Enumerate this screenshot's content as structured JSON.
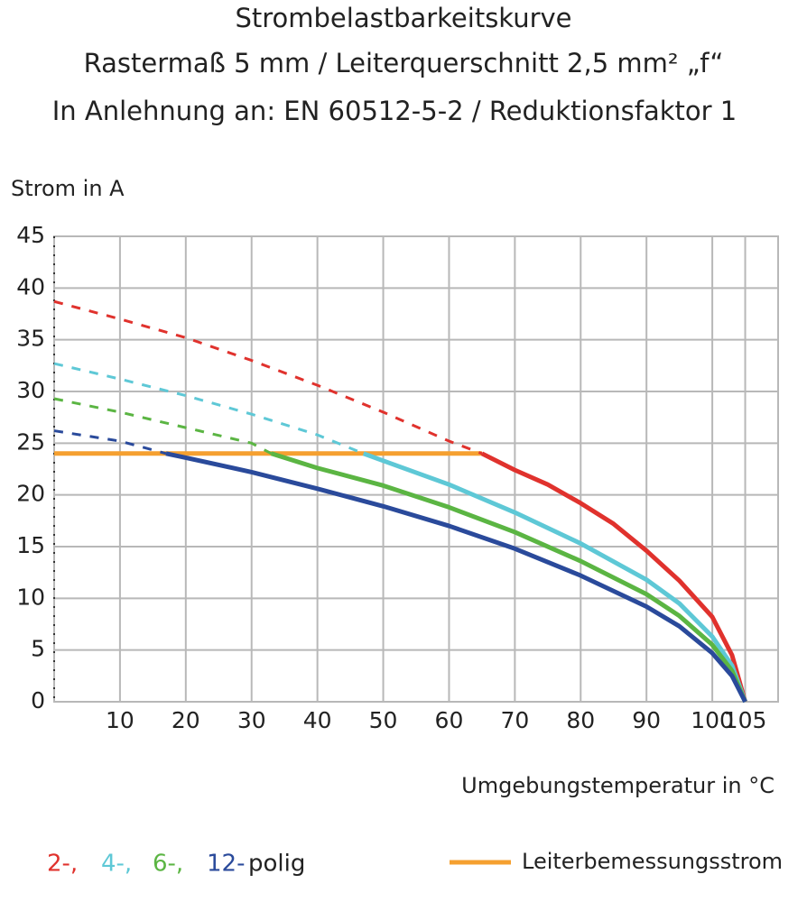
{
  "chart_data": {
    "type": "line",
    "title": "Strombelastbarkeitskurve",
    "subtitle": [
      "Rastermaß 5 mm / Leiterquerschnitt 2,5 mm² „f“",
      "In Anlehnung an: EN 60512-5-2 / Reduktionsfaktor 1"
    ],
    "y_label": "Strom in A",
    "x_label": "Umgebungstemperatur in °C",
    "legend_suffix": "polig",
    "xlim": [
      0,
      110
    ],
    "xticks": [
      10,
      20,
      30,
      40,
      50,
      60,
      70,
      80,
      90,
      100,
      105
    ],
    "ylim": [
      0,
      45
    ],
    "yticks": [
      0,
      5,
      10,
      15,
      20,
      25,
      30,
      35,
      40,
      45
    ],
    "grid": true,
    "series": [
      {
        "name": "2-,",
        "color": "#e0322d",
        "dashed": {
          "x": [
            0,
            10,
            20,
            30,
            40,
            50,
            60,
            65
          ],
          "values": [
            38.7,
            37,
            35.2,
            33,
            30.6,
            28,
            25.2,
            24
          ]
        },
        "x": [
          65,
          70,
          75,
          80,
          85,
          90,
          95,
          100,
          103,
          105
        ],
        "values": [
          24,
          22.4,
          21,
          19.2,
          17.2,
          14.6,
          11.7,
          8.2,
          4.5,
          0
        ]
      },
      {
        "name": "4-,",
        "color": "#5ec8d6",
        "dashed": {
          "x": [
            0,
            10,
            20,
            30,
            40,
            47
          ],
          "values": [
            32.7,
            31.2,
            29.6,
            27.8,
            25.8,
            24
          ]
        },
        "x": [
          47,
          50,
          60,
          70,
          80,
          90,
          95,
          100,
          103,
          105
        ],
        "values": [
          24,
          23.3,
          21,
          18.3,
          15.3,
          11.8,
          9.5,
          6.3,
          3.5,
          0
        ]
      },
      {
        "name": "6-,",
        "color": "#5bb543",
        "dashed": {
          "x": [
            0,
            10,
            20,
            30,
            33
          ],
          "values": [
            29.3,
            28,
            26.5,
            25,
            24
          ]
        },
        "x": [
          33,
          40,
          50,
          60,
          70,
          80,
          90,
          95,
          100,
          103,
          105
        ],
        "values": [
          24,
          22.6,
          20.9,
          18.8,
          16.4,
          13.6,
          10.4,
          8.3,
          5.5,
          3,
          0
        ]
      },
      {
        "name": "12-",
        "color": "#2a4a9b",
        "dashed": {
          "x": [
            0,
            10,
            17
          ],
          "values": [
            26.2,
            25.2,
            24
          ]
        },
        "x": [
          17,
          20,
          30,
          40,
          50,
          60,
          70,
          80,
          90,
          95,
          100,
          103,
          105
        ],
        "values": [
          24,
          23.6,
          22.2,
          20.6,
          18.9,
          17,
          14.8,
          12.2,
          9.2,
          7.3,
          4.7,
          2.5,
          0
        ]
      }
    ],
    "reference": {
      "name": "Leiterbemessungsstrom",
      "color": "#f5a030",
      "x": [
        0,
        65
      ],
      "values": [
        24,
        24
      ]
    }
  }
}
